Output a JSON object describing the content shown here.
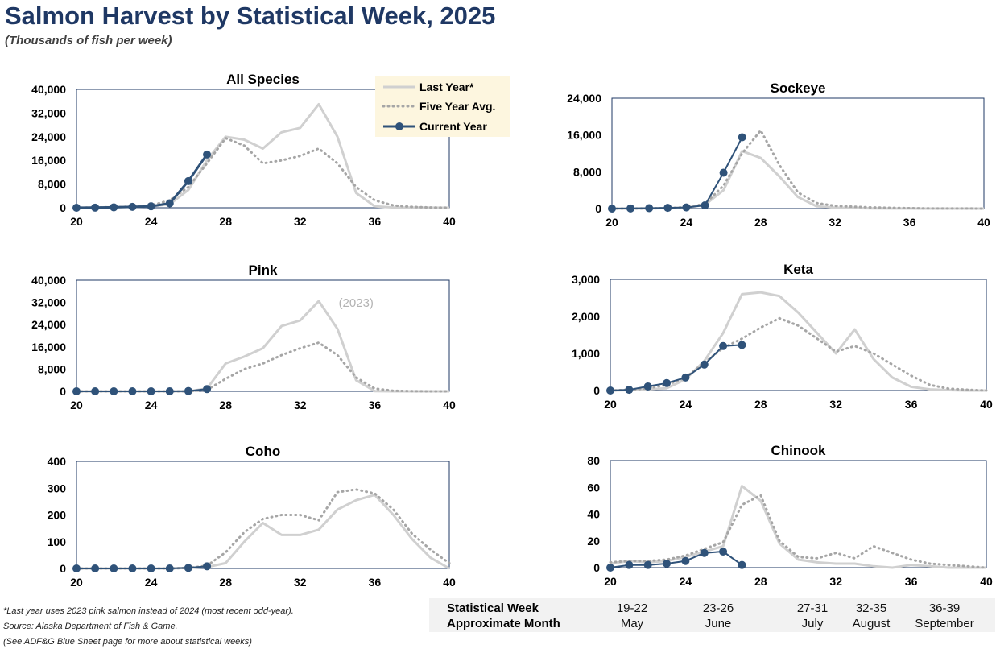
{
  "title": "Salmon Harvest by Statistical Week, 2025",
  "subtitle": "(Thousands of fish per week)",
  "colors": {
    "title": "#1f3864",
    "current_year": "#2f5279",
    "last_year": "#d0d0d0",
    "five_year_avg": "#a6a6a6",
    "legend_bg": "#fdf6df",
    "plot_border": "#1f3864"
  },
  "legend": {
    "last_year": "Last Year*",
    "five_year_avg": "Five Year Avg.",
    "current_year": "Current Year"
  },
  "chart_data": [
    {
      "type": "line",
      "title": "All Species",
      "xlabel": "",
      "ylabel": "",
      "xlim": [
        20,
        40
      ],
      "ylim": [
        0,
        40000
      ],
      "xticks": [
        "20",
        "24",
        "28",
        "32",
        "36",
        "40"
      ],
      "yticks": [
        "0",
        "8,000",
        "16,000",
        "24,000",
        "32,000",
        "40,000"
      ],
      "series": [
        {
          "name": "Last Year*",
          "style": "solid-light",
          "x": [
            20,
            21,
            22,
            23,
            24,
            25,
            26,
            27,
            28,
            29,
            30,
            31,
            32,
            33,
            34,
            35,
            36,
            37,
            38,
            39,
            40
          ],
          "values": [
            0,
            100,
            200,
            300,
            500,
            1200,
            6000,
            16000,
            24000,
            23000,
            20000,
            25500,
            27000,
            35000,
            24000,
            5000,
            500,
            100,
            50,
            20,
            0
          ]
        },
        {
          "name": "Five Year Avg.",
          "style": "dotted",
          "x": [
            20,
            21,
            22,
            23,
            24,
            25,
            26,
            27,
            28,
            29,
            30,
            31,
            32,
            33,
            34,
            35,
            36,
            37,
            38,
            39,
            40
          ],
          "values": [
            0,
            100,
            200,
            400,
            800,
            2500,
            7000,
            15000,
            23500,
            21000,
            15000,
            16000,
            17500,
            20000,
            15000,
            7000,
            2500,
            800,
            300,
            100,
            0
          ]
        },
        {
          "name": "Current Year",
          "style": "current",
          "x": [
            20,
            21,
            22,
            23,
            24,
            25,
            26,
            27
          ],
          "values": [
            0,
            50,
            150,
            300,
            500,
            1500,
            9000,
            18000
          ]
        }
      ]
    },
    {
      "type": "line",
      "title": "Sockeye",
      "xlabel": "",
      "ylabel": "",
      "xlim": [
        20,
        40
      ],
      "ylim": [
        0,
        24000
      ],
      "xticks": [
        "20",
        "24",
        "28",
        "32",
        "36",
        "40"
      ],
      "yticks": [
        "0",
        "8,000",
        "16,000",
        "24,000"
      ],
      "series": [
        {
          "name": "Last Year*",
          "style": "solid-light",
          "x": [
            20,
            21,
            22,
            23,
            24,
            25,
            26,
            27,
            28,
            29,
            30,
            31,
            32,
            33,
            34,
            35,
            36,
            37,
            38,
            39,
            40
          ],
          "values": [
            0,
            0,
            50,
            100,
            200,
            800,
            4000,
            12500,
            11000,
            7000,
            2500,
            500,
            200,
            100,
            50,
            20,
            10,
            0,
            0,
            0,
            0
          ]
        },
        {
          "name": "Five Year Avg.",
          "style": "dotted",
          "x": [
            20,
            21,
            22,
            23,
            24,
            25,
            26,
            27,
            28,
            29,
            30,
            31,
            32,
            33,
            34,
            35,
            36,
            37,
            38,
            39,
            40
          ],
          "values": [
            0,
            0,
            50,
            100,
            300,
            1000,
            5000,
            12000,
            17000,
            9500,
            3500,
            1200,
            600,
            400,
            250,
            150,
            80,
            40,
            20,
            10,
            0
          ]
        },
        {
          "name": "Current Year",
          "style": "current",
          "x": [
            20,
            21,
            22,
            23,
            24,
            25,
            26,
            27
          ],
          "values": [
            0,
            30,
            80,
            150,
            250,
            700,
            7800,
            15500
          ]
        }
      ]
    },
    {
      "type": "line",
      "title": "Pink",
      "xlabel": "",
      "ylabel": "",
      "xlim": [
        20,
        40
      ],
      "ylim": [
        0,
        40000
      ],
      "xticks": [
        "20",
        "24",
        "28",
        "32",
        "36",
        "40"
      ],
      "yticks": [
        "0",
        "8,000",
        "16,000",
        "24,000",
        "32,000",
        "40,000"
      ],
      "annotation": {
        "text": "(2023)",
        "x": 35,
        "y": 30500
      },
      "series": [
        {
          "name": "Last Year*",
          "style": "solid-light",
          "x": [
            20,
            21,
            22,
            23,
            24,
            25,
            26,
            27,
            28,
            29,
            30,
            31,
            32,
            33,
            34,
            35,
            36,
            37,
            38,
            39,
            40
          ],
          "values": [
            0,
            0,
            0,
            0,
            0,
            0,
            0,
            1000,
            10000,
            12500,
            15500,
            23500,
            25500,
            32500,
            22500,
            4000,
            100,
            0,
            0,
            0,
            0
          ]
        },
        {
          "name": "Five Year Avg.",
          "style": "dotted",
          "x": [
            20,
            21,
            22,
            23,
            24,
            25,
            26,
            27,
            28,
            29,
            30,
            31,
            32,
            33,
            34,
            35,
            36,
            37,
            38,
            39,
            40
          ],
          "values": [
            0,
            0,
            0,
            0,
            0,
            0,
            0,
            500,
            4500,
            8000,
            10000,
            13000,
            15500,
            17500,
            13000,
            5000,
            1000,
            200,
            50,
            0,
            0
          ]
        },
        {
          "name": "Current Year",
          "style": "current",
          "x": [
            20,
            21,
            22,
            23,
            24,
            25,
            26,
            27
          ],
          "values": [
            0,
            0,
            0,
            0,
            0,
            0,
            100,
            800
          ]
        }
      ]
    },
    {
      "type": "line",
      "title": "Keta",
      "xlabel": "",
      "ylabel": "",
      "xlim": [
        20,
        40
      ],
      "ylim": [
        0,
        3000
      ],
      "xticks": [
        "20",
        "24",
        "28",
        "32",
        "36",
        "40"
      ],
      "yticks": [
        "0",
        "1,000",
        "2,000",
        "3,000"
      ],
      "series": [
        {
          "name": "Last Year*",
          "style": "solid-light",
          "x": [
            20,
            21,
            22,
            23,
            24,
            25,
            26,
            27,
            28,
            29,
            30,
            31,
            32,
            33,
            34,
            35,
            36,
            37,
            38,
            39,
            40
          ],
          "values": [
            0,
            10,
            30,
            60,
            300,
            800,
            1550,
            2600,
            2650,
            2550,
            2100,
            1550,
            1000,
            1650,
            850,
            350,
            100,
            30,
            10,
            0,
            0
          ]
        },
        {
          "name": "Five Year Avg.",
          "style": "dotted",
          "x": [
            20,
            21,
            22,
            23,
            24,
            25,
            26,
            27,
            28,
            29,
            30,
            31,
            32,
            33,
            34,
            35,
            36,
            37,
            38,
            39,
            40
          ],
          "values": [
            0,
            20,
            60,
            150,
            350,
            750,
            1150,
            1400,
            1700,
            1950,
            1750,
            1400,
            1050,
            1200,
            1000,
            700,
            400,
            150,
            50,
            20,
            0
          ]
        },
        {
          "name": "Current Year",
          "style": "current",
          "x": [
            20,
            21,
            22,
            23,
            24,
            25,
            26,
            27
          ],
          "values": [
            0,
            20,
            110,
            200,
            350,
            700,
            1200,
            1230
          ]
        }
      ]
    },
    {
      "type": "line",
      "title": "Coho",
      "xlabel": "",
      "ylabel": "",
      "xlim": [
        20,
        40
      ],
      "ylim": [
        0,
        400
      ],
      "xticks": [
        "20",
        "24",
        "28",
        "32",
        "36",
        "40"
      ],
      "yticks": [
        "0",
        "100",
        "200",
        "300",
        "400"
      ],
      "series": [
        {
          "name": "Last Year*",
          "style": "solid-light",
          "x": [
            20,
            21,
            22,
            23,
            24,
            25,
            26,
            27,
            28,
            29,
            30,
            31,
            32,
            33,
            34,
            35,
            36,
            37,
            38,
            39,
            40
          ],
          "values": [
            0,
            0,
            0,
            0,
            0,
            0,
            2,
            5,
            20,
            100,
            170,
            125,
            125,
            145,
            220,
            255,
            275,
            200,
            110,
            40,
            0
          ]
        },
        {
          "name": "Five Year Avg.",
          "style": "dotted",
          "x": [
            20,
            21,
            22,
            23,
            24,
            25,
            26,
            27,
            28,
            29,
            30,
            31,
            32,
            33,
            34,
            35,
            36,
            37,
            38,
            39,
            40
          ],
          "values": [
            0,
            0,
            0,
            0,
            0,
            0,
            2,
            10,
            60,
            135,
            185,
            200,
            200,
            180,
            285,
            295,
            280,
            220,
            130,
            70,
            20
          ]
        },
        {
          "name": "Current Year",
          "style": "current",
          "x": [
            20,
            21,
            22,
            23,
            24,
            25,
            26,
            27
          ],
          "values": [
            0,
            0,
            0,
            0,
            0,
            0,
            2,
            8
          ]
        }
      ]
    },
    {
      "type": "line",
      "title": "Chinook",
      "xlabel": "",
      "ylabel": "",
      "xlim": [
        20,
        40
      ],
      "ylim": [
        0,
        80
      ],
      "xticks": [
        "20",
        "24",
        "28",
        "32",
        "36",
        "40"
      ],
      "yticks": [
        "0",
        "20",
        "40",
        "60",
        "80"
      ],
      "series": [
        {
          "name": "Last Year*",
          "style": "solid-light",
          "x": [
            20,
            21,
            22,
            23,
            24,
            25,
            26,
            27,
            28,
            29,
            30,
            31,
            32,
            33,
            34,
            35,
            36,
            37,
            38,
            39,
            40
          ],
          "values": [
            3,
            5,
            4,
            5,
            8,
            12,
            16,
            61,
            50,
            18,
            6,
            4,
            3,
            3,
            1,
            0,
            2,
            1,
            0,
            0,
            0
          ]
        },
        {
          "name": "Five Year Avg.",
          "style": "dotted",
          "x": [
            20,
            21,
            22,
            23,
            24,
            25,
            26,
            27,
            28,
            29,
            30,
            31,
            32,
            33,
            34,
            35,
            36,
            37,
            38,
            39,
            40
          ],
          "values": [
            4,
            5,
            5,
            6,
            9,
            14,
            19,
            47,
            54,
            20,
            8,
            7,
            11,
            7,
            16,
            11,
            6,
            3,
            2,
            1,
            0
          ]
        },
        {
          "name": "Current Year",
          "style": "current",
          "x": [
            20,
            21,
            22,
            23,
            24,
            25,
            26,
            27
          ],
          "values": [
            0,
            2,
            2,
            3,
            5,
            11,
            12,
            2
          ]
        }
      ]
    }
  ],
  "footnotes": {
    "line1": "*Last year uses 2023 pink salmon instead of 2024 (most recent odd-year).",
    "line2": "Source: Alaska Department of Fish & Game.",
    "line3": " (See ADF&G Blue Sheet page for more about statistical weeks)"
  },
  "week_table": {
    "row1_label": "Statistical Week",
    "row2_label": "Approximate Month",
    "columns": [
      {
        "weeks": "19-22",
        "month": "May"
      },
      {
        "weeks": "23-26",
        "month": "June"
      },
      {
        "weeks": "27-31",
        "month": "July"
      },
      {
        "weeks": "32-35",
        "month": "August"
      },
      {
        "weeks": "36-39",
        "month": "September"
      }
    ]
  }
}
